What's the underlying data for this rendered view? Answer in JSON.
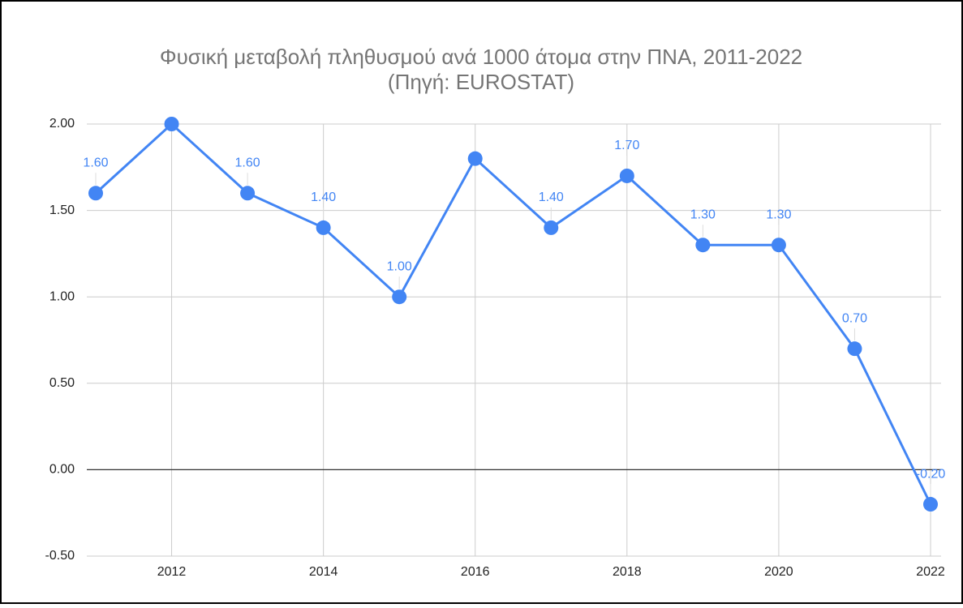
{
  "chart_data": {
    "type": "line",
    "title": "Φυσική μεταβολή πληθυσμού ανά 1000 άτομα στην ΠΝΑ, 2011-2022",
    "subtitle": "(Πηγή: EUROSTAT)",
    "x": [
      2011,
      2012,
      2013,
      2014,
      2015,
      2016,
      2017,
      2018,
      2019,
      2020,
      2021,
      2022
    ],
    "series": [
      {
        "name": "Φυσική μεταβολή",
        "color": "#4285f4",
        "values": [
          1.6,
          2.0,
          1.6,
          1.4,
          1.0,
          1.8,
          1.4,
          1.7,
          1.3,
          1.3,
          0.7,
          -0.2
        ],
        "value_labels": [
          "1.60",
          null,
          "1.60",
          "1.40",
          "1.00",
          null,
          "1.40",
          "1.70",
          "1.30",
          "1.30",
          "0.70",
          "-0.20"
        ]
      }
    ],
    "xlim": [
      2011,
      2022
    ],
    "xticks": [
      2012,
      2014,
      2016,
      2018,
      2020,
      2022
    ],
    "ylim": [
      -0.5,
      2.0
    ],
    "yticks": [
      {
        "value": -0.5,
        "label": "-0.50"
      },
      {
        "value": 0,
        "label": "0.00"
      },
      {
        "value": 0.5,
        "label": "0.50"
      },
      {
        "value": 1,
        "label": "1.00"
      },
      {
        "value": 1.5,
        "label": "1.50"
      },
      {
        "value": 2,
        "label": "2.00"
      }
    ],
    "grid": true
  }
}
